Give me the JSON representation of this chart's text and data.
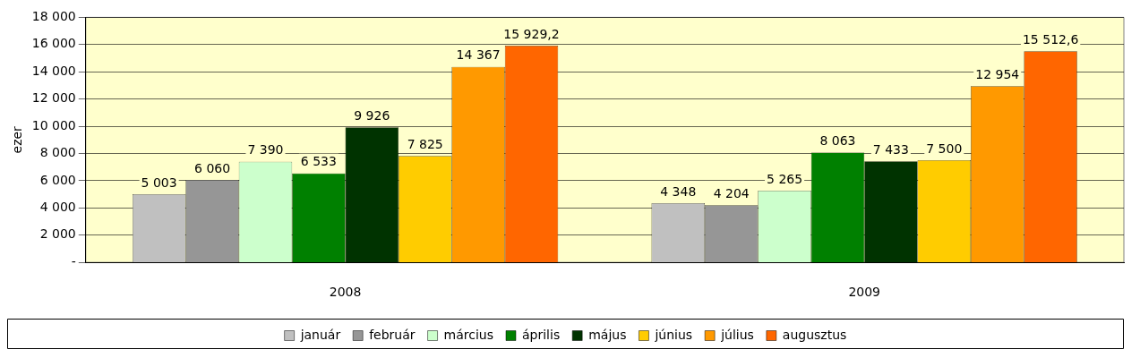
{
  "chart_data": {
    "type": "bar",
    "ylabel": "ezer",
    "categories": [
      "2008",
      "2009"
    ],
    "series": [
      {
        "name": "január",
        "color": "#c0c0c0",
        "values": [
          5003,
          4348
        ],
        "value_labels": [
          "5 003",
          "4 348"
        ]
      },
      {
        "name": "február",
        "color": "#969696",
        "values": [
          6060,
          4204
        ],
        "value_labels": [
          "6 060",
          "4 204"
        ]
      },
      {
        "name": "március",
        "color": "#ccffcc",
        "values": [
          7390,
          5265
        ],
        "value_labels": [
          "7 390",
          "5 265"
        ]
      },
      {
        "name": "április",
        "color": "#008000",
        "values": [
          6533,
          8063
        ],
        "value_labels": [
          "6 533",
          "8 063"
        ]
      },
      {
        "name": "május",
        "color": "#003300",
        "values": [
          9926,
          7433
        ],
        "value_labels": [
          "9 926",
          "7 433"
        ]
      },
      {
        "name": "június",
        "color": "#ffcc00",
        "values": [
          7825,
          7500
        ],
        "value_labels": [
          "7 825",
          "7 500"
        ]
      },
      {
        "name": "július",
        "color": "#ff9900",
        "values": [
          14367,
          12954
        ],
        "value_labels": [
          "14 367",
          "12 954"
        ]
      },
      {
        "name": "augusztus",
        "color": "#ff6600",
        "values": [
          15929.2,
          15512.6
        ],
        "value_labels": [
          "15 929,2",
          "15 512,6"
        ]
      }
    ],
    "ylim": [
      0,
      18000
    ],
    "yticks": [
      {
        "value": 0,
        "label": "-"
      },
      {
        "value": 2000,
        "label": "2 000"
      },
      {
        "value": 4000,
        "label": "4 000"
      },
      {
        "value": 6000,
        "label": "6 000"
      },
      {
        "value": 8000,
        "label": "8 000"
      },
      {
        "value": 10000,
        "label": "10 000"
      },
      {
        "value": 12000,
        "label": "12 000"
      },
      {
        "value": 14000,
        "label": "14 000"
      },
      {
        "value": 16000,
        "label": "16 000"
      },
      {
        "value": 18000,
        "label": "18 000"
      }
    ],
    "grid": "y",
    "legend": "bottom"
  }
}
